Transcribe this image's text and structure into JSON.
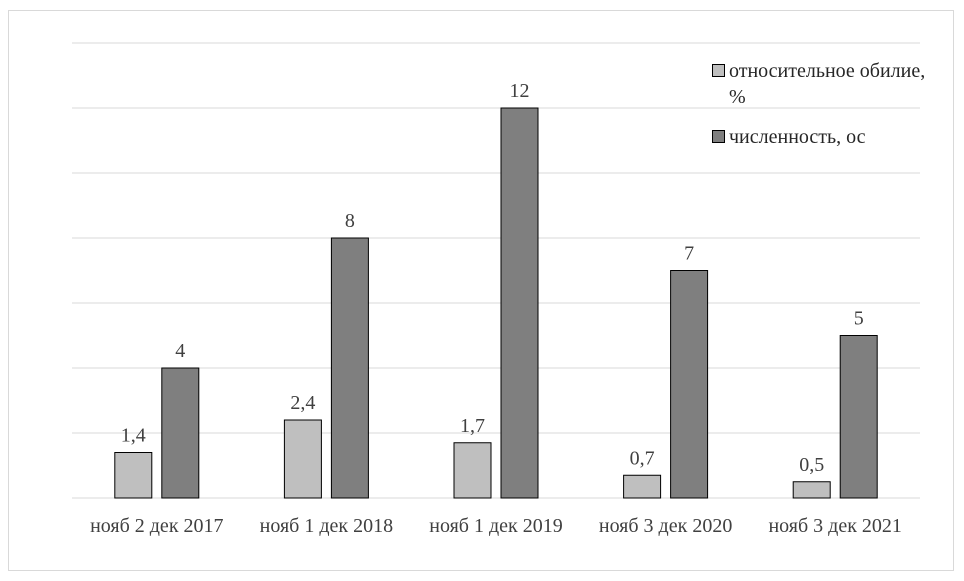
{
  "chart_data": {
    "type": "bar",
    "categories": [
      "нояб 2 дек 2017",
      "нояб 1 дек 2018",
      "нояб 1 дек 2019",
      "нояб 3 дек 2020",
      "нояб 3 дек 2021"
    ],
    "series": [
      {
        "name": "относительное обилие, %",
        "values": [
          1.4,
          2.4,
          1.7,
          0.7,
          0.5
        ],
        "labels": [
          "1,4",
          "2,4",
          "1,7",
          "0,7",
          "0,5"
        ],
        "color": "#bfbfbf"
      },
      {
        "name": "численность, ос",
        "values": [
          4,
          8,
          12,
          7,
          5
        ],
        "labels": [
          "4",
          "8",
          "12",
          "7",
          "5"
        ],
        "color": "#7f7f7f"
      }
    ],
    "ylim": [
      0,
      14
    ],
    "grid": true,
    "legend_position": "top-right",
    "gridline_color": "#d9d9d9",
    "bar_outline_color": "#000000"
  }
}
